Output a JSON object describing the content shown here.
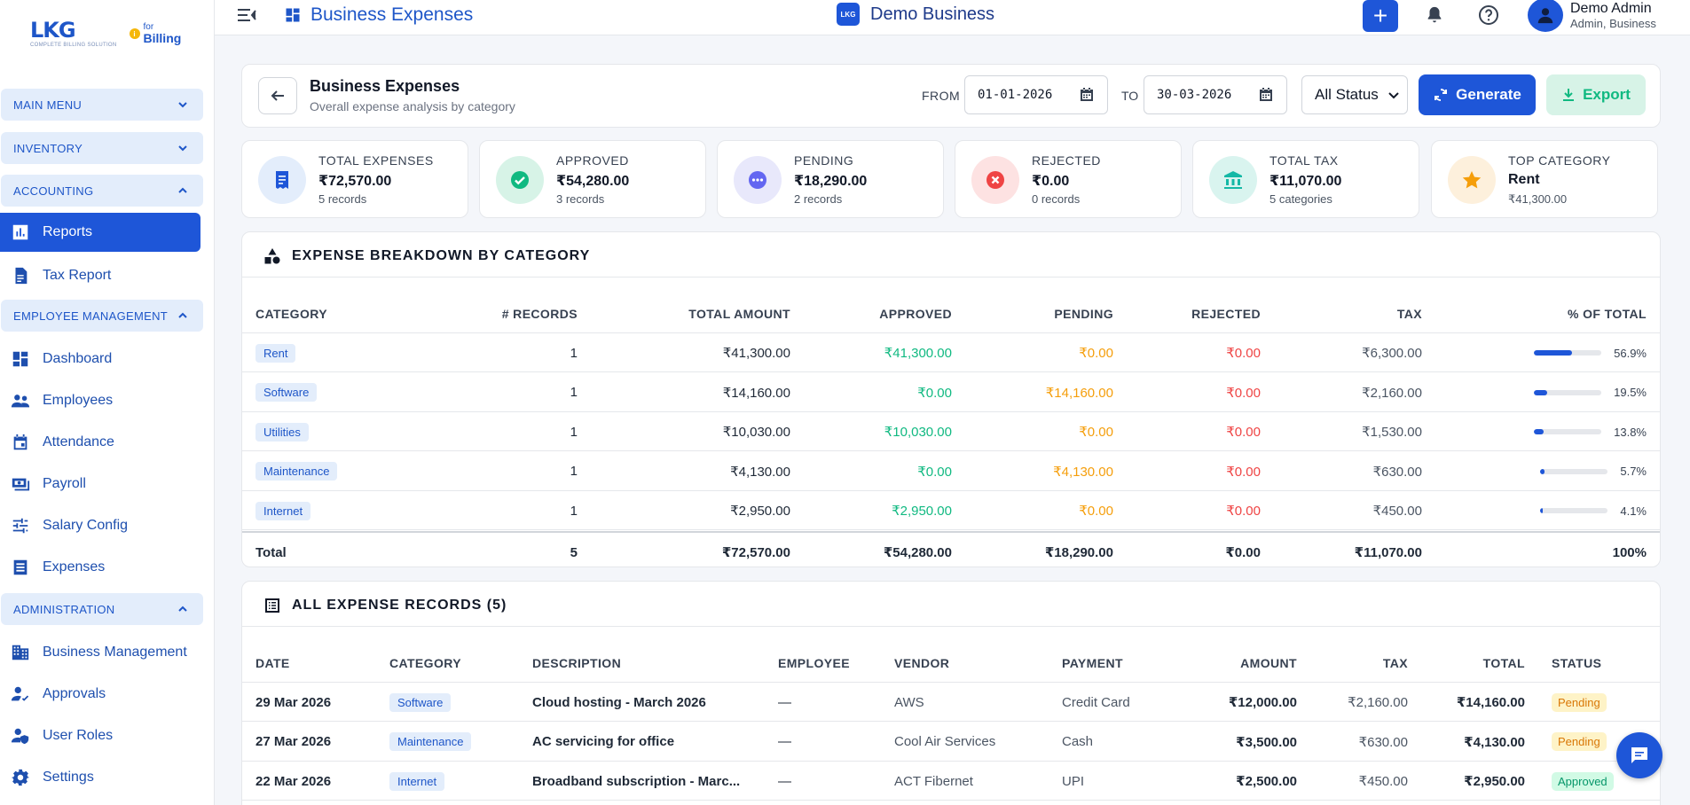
{
  "brand": {
    "logo_main": "LKG",
    "logo_sub": "COMPLETE BILLING SOLUTION",
    "badge_icon": "i",
    "for": "for",
    "billing": "Billing"
  },
  "sidebar": {
    "sections": [
      {
        "label": "MAIN MENU",
        "expanded": false
      },
      {
        "label": "INVENTORY",
        "expanded": false
      },
      {
        "label": "ACCOUNTING",
        "expanded": true
      },
      {
        "label": "EMPLOYEE MANAGEMENT",
        "expanded": true
      },
      {
        "label": "ADMINISTRATION",
        "expanded": true
      }
    ],
    "accounting_items": [
      {
        "label": "Reports",
        "icon": "bar-chart-icon",
        "active": true
      },
      {
        "label": "Tax Report",
        "icon": "document-icon"
      }
    ],
    "employee_items": [
      {
        "label": "Dashboard",
        "icon": "dashboard-icon"
      },
      {
        "label": "Employees",
        "icon": "people-icon"
      },
      {
        "label": "Attendance",
        "icon": "calendar-icon"
      },
      {
        "label": "Payroll",
        "icon": "payroll-icon"
      },
      {
        "label": "Salary Config",
        "icon": "sliders-icon"
      },
      {
        "label": "Expenses",
        "icon": "list-icon"
      }
    ],
    "admin_items": [
      {
        "label": "Business Management",
        "icon": "building-icon"
      },
      {
        "label": "Approvals",
        "icon": "approval-icon"
      },
      {
        "label": "User Roles",
        "icon": "user-shield-icon"
      },
      {
        "label": "Settings",
        "icon": "gear-icon"
      }
    ]
  },
  "topbar": {
    "page_title": "Business Expenses",
    "business_name": "Demo Business",
    "business_logo": "LKG",
    "add_icon": "+",
    "user_name": "Demo Admin",
    "user_role": "Admin, Business"
  },
  "header": {
    "title": "Business Expenses",
    "subtitle": "Overall expense analysis by category",
    "from_label": "FROM",
    "from_date": "01-01-2026",
    "to_label": "TO",
    "to_date": "30-03-2026",
    "status_value": "All Status",
    "generate_label": "Generate",
    "export_label": "Export"
  },
  "stats": [
    {
      "label": "TOTAL EXPENSES",
      "value": "₹72,570.00",
      "sub": "5 records",
      "icon": "receipt-icon",
      "bg": "#e3edfb",
      "fg": "#1e56d8"
    },
    {
      "label": "APPROVED",
      "value": "₹54,280.00",
      "sub": "3 records",
      "icon": "check-circle-icon",
      "bg": "#d7f3e7",
      "fg": "#10b981"
    },
    {
      "label": "PENDING",
      "value": "₹18,290.00",
      "sub": "2 records",
      "icon": "more-circle-icon",
      "bg": "#e8e8fb",
      "fg": "#6366f1"
    },
    {
      "label": "REJECTED",
      "value": "₹0.00",
      "sub": "0 records",
      "icon": "x-circle-icon",
      "bg": "#fde2e2",
      "fg": "#ef4444"
    },
    {
      "label": "TOTAL TAX",
      "value": "₹11,070.00",
      "sub": "5 categories",
      "icon": "bank-icon",
      "bg": "#d9f4ef",
      "fg": "#14b8a6"
    },
    {
      "label": "TOP CATEGORY",
      "value": "Rent",
      "sub": "₹41,300.00",
      "icon": "star-icon",
      "bg": "#fdf0dc",
      "fg": "#f59e0b"
    }
  ],
  "breakdown": {
    "title": "EXPENSE BREAKDOWN BY CATEGORY",
    "headers": [
      "CATEGORY",
      "# RECORDS",
      "TOTAL AMOUNT",
      "APPROVED",
      "PENDING",
      "REJECTED",
      "TAX",
      "% OF TOTAL"
    ],
    "rows": [
      {
        "category": "Rent",
        "records": "1",
        "total": "₹41,300.00",
        "approved": "₹41,300.00",
        "pending": "₹0.00",
        "rejected": "₹0.00",
        "tax": "₹6,300.00",
        "pct": "56.9%",
        "pct_value": 56.9
      },
      {
        "category": "Software",
        "records": "1",
        "total": "₹14,160.00",
        "approved": "₹0.00",
        "pending": "₹14,160.00",
        "rejected": "₹0.00",
        "tax": "₹2,160.00",
        "pct": "19.5%",
        "pct_value": 19.5
      },
      {
        "category": "Utilities",
        "records": "1",
        "total": "₹10,030.00",
        "approved": "₹10,030.00",
        "pending": "₹0.00",
        "rejected": "₹0.00",
        "tax": "₹1,530.00",
        "pct": "13.8%",
        "pct_value": 13.8
      },
      {
        "category": "Maintenance",
        "records": "1",
        "total": "₹4,130.00",
        "approved": "₹0.00",
        "pending": "₹4,130.00",
        "rejected": "₹0.00",
        "tax": "₹630.00",
        "pct": "5.7%",
        "pct_value": 5.7
      },
      {
        "category": "Internet",
        "records": "1",
        "total": "₹2,950.00",
        "approved": "₹2,950.00",
        "pending": "₹0.00",
        "rejected": "₹0.00",
        "tax": "₹450.00",
        "pct": "4.1%",
        "pct_value": 4.1
      }
    ],
    "total": {
      "label": "Total",
      "records": "5",
      "total": "₹72,570.00",
      "approved": "₹54,280.00",
      "pending": "₹18,290.00",
      "rejected": "₹0.00",
      "tax": "₹11,070.00",
      "pct": "100%"
    }
  },
  "records": {
    "title": "ALL EXPENSE RECORDS (5)",
    "headers": [
      "DATE",
      "CATEGORY",
      "DESCRIPTION",
      "EMPLOYEE",
      "VENDOR",
      "PAYMENT",
      "AMOUNT",
      "TAX",
      "TOTAL",
      "STATUS"
    ],
    "rows": [
      {
        "date": "29 Mar 2026",
        "category": "Software",
        "description": "Cloud hosting - March 2026",
        "employee": "—",
        "vendor": "AWS",
        "payment": "Credit Card",
        "amount": "₹12,000.00",
        "tax": "₹2,160.00",
        "total": "₹14,160.00",
        "status": "Pending"
      },
      {
        "date": "27 Mar 2026",
        "category": "Maintenance",
        "description": "AC servicing for office",
        "employee": "—",
        "vendor": "Cool Air Services",
        "payment": "Cash",
        "amount": "₹3,500.00",
        "tax": "₹630.00",
        "total": "₹4,130.00",
        "status": "Pending"
      },
      {
        "date": "22 Mar 2026",
        "category": "Internet",
        "description": "Broadband subscription - Marc...",
        "employee": "—",
        "vendor": "ACT Fibernet",
        "payment": "UPI",
        "amount": "₹2,500.00",
        "tax": "₹450.00",
        "total": "₹2,950.00",
        "status": "Approved"
      }
    ]
  }
}
